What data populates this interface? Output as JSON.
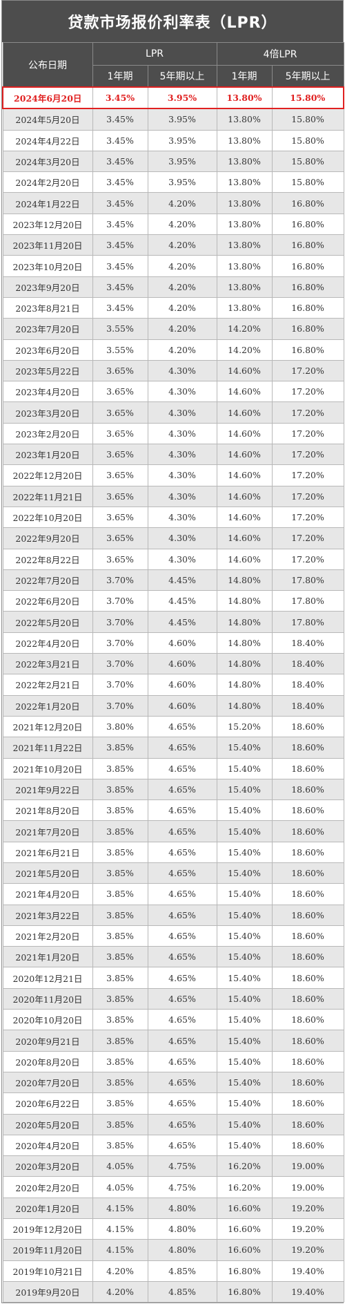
{
  "title": "贷款市场报价利率表（LPR）",
  "header": {
    "date_col": "公布日期",
    "group_lpr": "LPR",
    "group_4x": "4倍LPR",
    "sub_1y": "1年期",
    "sub_5y": "5年期以上"
  },
  "colors": {
    "header_bg": "#4d4d4d",
    "highlight": "#e02020",
    "stripe": "#e7e7e7"
  },
  "rows": [
    {
      "date": "2024年6月20日",
      "lpr_1y": "3.45%",
      "lpr_5y": "3.95%",
      "x4_1y": "13.80%",
      "x4_5y": "15.80%"
    },
    {
      "date": "2024年5月20日",
      "lpr_1y": "3.45%",
      "lpr_5y": "3.95%",
      "x4_1y": "13.80%",
      "x4_5y": "15.80%"
    },
    {
      "date": "2024年4月22日",
      "lpr_1y": "3.45%",
      "lpr_5y": "3.95%",
      "x4_1y": "13.80%",
      "x4_5y": "15.80%"
    },
    {
      "date": "2024年3月20日",
      "lpr_1y": "3.45%",
      "lpr_5y": "3.95%",
      "x4_1y": "13.80%",
      "x4_5y": "15.80%"
    },
    {
      "date": "2024年2月20日",
      "lpr_1y": "3.45%",
      "lpr_5y": "3.95%",
      "x4_1y": "13.80%",
      "x4_5y": "15.80%"
    },
    {
      "date": "2024年1月22日",
      "lpr_1y": "3.45%",
      "lpr_5y": "4.20%",
      "x4_1y": "13.80%",
      "x4_5y": "16.80%"
    },
    {
      "date": "2023年12月20日",
      "lpr_1y": "3.45%",
      "lpr_5y": "4.20%",
      "x4_1y": "13.80%",
      "x4_5y": "16.80%"
    },
    {
      "date": "2023年11月20日",
      "lpr_1y": "3.45%",
      "lpr_5y": "4.20%",
      "x4_1y": "13.80%",
      "x4_5y": "16.80%"
    },
    {
      "date": "2023年10月20日",
      "lpr_1y": "3.45%",
      "lpr_5y": "4.20%",
      "x4_1y": "13.80%",
      "x4_5y": "16.80%"
    },
    {
      "date": "2023年9月20日",
      "lpr_1y": "3.45%",
      "lpr_5y": "4.20%",
      "x4_1y": "13.80%",
      "x4_5y": "16.80%"
    },
    {
      "date": "2023年8月21日",
      "lpr_1y": "3.45%",
      "lpr_5y": "4.20%",
      "x4_1y": "13.80%",
      "x4_5y": "16.80%"
    },
    {
      "date": "2023年7月20日",
      "lpr_1y": "3.55%",
      "lpr_5y": "4.20%",
      "x4_1y": "14.20%",
      "x4_5y": "16.80%"
    },
    {
      "date": "2023年6月20日",
      "lpr_1y": "3.55%",
      "lpr_5y": "4.20%",
      "x4_1y": "14.20%",
      "x4_5y": "16.80%"
    },
    {
      "date": "2023年5月22日",
      "lpr_1y": "3.65%",
      "lpr_5y": "4.30%",
      "x4_1y": "14.60%",
      "x4_5y": "17.20%"
    },
    {
      "date": "2023年4月20日",
      "lpr_1y": "3.65%",
      "lpr_5y": "4.30%",
      "x4_1y": "14.60%",
      "x4_5y": "17.20%"
    },
    {
      "date": "2023年3月20日",
      "lpr_1y": "3.65%",
      "lpr_5y": "4.30%",
      "x4_1y": "14.60%",
      "x4_5y": "17.20%"
    },
    {
      "date": "2023年2月20日",
      "lpr_1y": "3.65%",
      "lpr_5y": "4.30%",
      "x4_1y": "14.60%",
      "x4_5y": "17.20%"
    },
    {
      "date": "2023年1月20日",
      "lpr_1y": "3.65%",
      "lpr_5y": "4.30%",
      "x4_1y": "14.60%",
      "x4_5y": "17.20%"
    },
    {
      "date": "2022年12月20日",
      "lpr_1y": "3.65%",
      "lpr_5y": "4.30%",
      "x4_1y": "14.60%",
      "x4_5y": "17.20%"
    },
    {
      "date": "2022年11月21日",
      "lpr_1y": "3.65%",
      "lpr_5y": "4.30%",
      "x4_1y": "14.60%",
      "x4_5y": "17.20%"
    },
    {
      "date": "2022年10月20日",
      "lpr_1y": "3.65%",
      "lpr_5y": "4.30%",
      "x4_1y": "14.60%",
      "x4_5y": "17.20%"
    },
    {
      "date": "2022年9月20日",
      "lpr_1y": "3.65%",
      "lpr_5y": "4.30%",
      "x4_1y": "14.60%",
      "x4_5y": "17.20%"
    },
    {
      "date": "2022年8月22日",
      "lpr_1y": "3.65%",
      "lpr_5y": "4.30%",
      "x4_1y": "14.60%",
      "x4_5y": "17.20%"
    },
    {
      "date": "2022年7月20日",
      "lpr_1y": "3.70%",
      "lpr_5y": "4.45%",
      "x4_1y": "14.80%",
      "x4_5y": "17.80%"
    },
    {
      "date": "2022年6月20日",
      "lpr_1y": "3.70%",
      "lpr_5y": "4.45%",
      "x4_1y": "14.80%",
      "x4_5y": "17.80%"
    },
    {
      "date": "2022年5月20日",
      "lpr_1y": "3.70%",
      "lpr_5y": "4.45%",
      "x4_1y": "14.80%",
      "x4_5y": "17.80%"
    },
    {
      "date": "2022年4月20日",
      "lpr_1y": "3.70%",
      "lpr_5y": "4.60%",
      "x4_1y": "14.80%",
      "x4_5y": "18.40%"
    },
    {
      "date": "2022年3月21日",
      "lpr_1y": "3.70%",
      "lpr_5y": "4.60%",
      "x4_1y": "14.80%",
      "x4_5y": "18.40%"
    },
    {
      "date": "2022年2月21日",
      "lpr_1y": "3.70%",
      "lpr_5y": "4.60%",
      "x4_1y": "14.80%",
      "x4_5y": "18.40%"
    },
    {
      "date": "2022年1月20日",
      "lpr_1y": "3.70%",
      "lpr_5y": "4.60%",
      "x4_1y": "14.80%",
      "x4_5y": "18.40%"
    },
    {
      "date": "2021年12月20日",
      "lpr_1y": "3.80%",
      "lpr_5y": "4.65%",
      "x4_1y": "15.20%",
      "x4_5y": "18.60%"
    },
    {
      "date": "2021年11月22日",
      "lpr_1y": "3.85%",
      "lpr_5y": "4.65%",
      "x4_1y": "15.40%",
      "x4_5y": "18.60%"
    },
    {
      "date": "2021年10月20日",
      "lpr_1y": "3.85%",
      "lpr_5y": "4.65%",
      "x4_1y": "15.40%",
      "x4_5y": "18.60%"
    },
    {
      "date": "2021年9月22日",
      "lpr_1y": "3.85%",
      "lpr_5y": "4.65%",
      "x4_1y": "15.40%",
      "x4_5y": "18.60%"
    },
    {
      "date": "2021年8月20日",
      "lpr_1y": "3.85%",
      "lpr_5y": "4.65%",
      "x4_1y": "15.40%",
      "x4_5y": "18.60%"
    },
    {
      "date": "2021年7月20日",
      "lpr_1y": "3.85%",
      "lpr_5y": "4.65%",
      "x4_1y": "15.40%",
      "x4_5y": "18.60%"
    },
    {
      "date": "2021年6月21日",
      "lpr_1y": "3.85%",
      "lpr_5y": "4.65%",
      "x4_1y": "15.40%",
      "x4_5y": "18.60%"
    },
    {
      "date": "2021年5月20日",
      "lpr_1y": "3.85%",
      "lpr_5y": "4.65%",
      "x4_1y": "15.40%",
      "x4_5y": "18.60%"
    },
    {
      "date": "2021年4月20日",
      "lpr_1y": "3.85%",
      "lpr_5y": "4.65%",
      "x4_1y": "15.40%",
      "x4_5y": "18.60%"
    },
    {
      "date": "2021年3月22日",
      "lpr_1y": "3.85%",
      "lpr_5y": "4.65%",
      "x4_1y": "15.40%",
      "x4_5y": "18.60%"
    },
    {
      "date": "2021年2月20日",
      "lpr_1y": "3.85%",
      "lpr_5y": "4.65%",
      "x4_1y": "15.40%",
      "x4_5y": "18.60%"
    },
    {
      "date": "2021年1月20日",
      "lpr_1y": "3.85%",
      "lpr_5y": "4.65%",
      "x4_1y": "15.40%",
      "x4_5y": "18.60%"
    },
    {
      "date": "2020年12月21日",
      "lpr_1y": "3.85%",
      "lpr_5y": "4.65%",
      "x4_1y": "15.40%",
      "x4_5y": "18.60%"
    },
    {
      "date": "2020年11月20日",
      "lpr_1y": "3.85%",
      "lpr_5y": "4.65%",
      "x4_1y": "15.40%",
      "x4_5y": "18.60%"
    },
    {
      "date": "2020年10月20日",
      "lpr_1y": "3.85%",
      "lpr_5y": "4.65%",
      "x4_1y": "15.40%",
      "x4_5y": "18.60%"
    },
    {
      "date": "2020年9月21日",
      "lpr_1y": "3.85%",
      "lpr_5y": "4.65%",
      "x4_1y": "15.40%",
      "x4_5y": "18.60%"
    },
    {
      "date": "2020年8月20日",
      "lpr_1y": "3.85%",
      "lpr_5y": "4.65%",
      "x4_1y": "15.40%",
      "x4_5y": "18.60%"
    },
    {
      "date": "2020年7月20日",
      "lpr_1y": "3.85%",
      "lpr_5y": "4.65%",
      "x4_1y": "15.40%",
      "x4_5y": "18.60%"
    },
    {
      "date": "2020年6月22日",
      "lpr_1y": "3.85%",
      "lpr_5y": "4.65%",
      "x4_1y": "15.40%",
      "x4_5y": "18.60%"
    },
    {
      "date": "2020年5月20日",
      "lpr_1y": "3.85%",
      "lpr_5y": "4.65%",
      "x4_1y": "15.40%",
      "x4_5y": "18.60%"
    },
    {
      "date": "2020年4月20日",
      "lpr_1y": "3.85%",
      "lpr_5y": "4.65%",
      "x4_1y": "15.40%",
      "x4_5y": "18.60%"
    },
    {
      "date": "2020年3月20日",
      "lpr_1y": "4.05%",
      "lpr_5y": "4.75%",
      "x4_1y": "16.20%",
      "x4_5y": "19.00%"
    },
    {
      "date": "2020年2月20日",
      "lpr_1y": "4.05%",
      "lpr_5y": "4.75%",
      "x4_1y": "16.20%",
      "x4_5y": "19.00%"
    },
    {
      "date": "2020年1月20日",
      "lpr_1y": "4.15%",
      "lpr_5y": "4.80%",
      "x4_1y": "16.60%",
      "x4_5y": "19.20%"
    },
    {
      "date": "2019年12月20日",
      "lpr_1y": "4.15%",
      "lpr_5y": "4.80%",
      "x4_1y": "16.60%",
      "x4_5y": "19.20%"
    },
    {
      "date": "2019年11月20日",
      "lpr_1y": "4.15%",
      "lpr_5y": "4.80%",
      "x4_1y": "16.60%",
      "x4_5y": "19.20%"
    },
    {
      "date": "2019年10月21日",
      "lpr_1y": "4.20%",
      "lpr_5y": "4.85%",
      "x4_1y": "16.80%",
      "x4_5y": "19.40%"
    },
    {
      "date": "2019年9月20日",
      "lpr_1y": "4.20%",
      "lpr_5y": "4.85%",
      "x4_1y": "16.80%",
      "x4_5y": "19.40%"
    }
  ]
}
